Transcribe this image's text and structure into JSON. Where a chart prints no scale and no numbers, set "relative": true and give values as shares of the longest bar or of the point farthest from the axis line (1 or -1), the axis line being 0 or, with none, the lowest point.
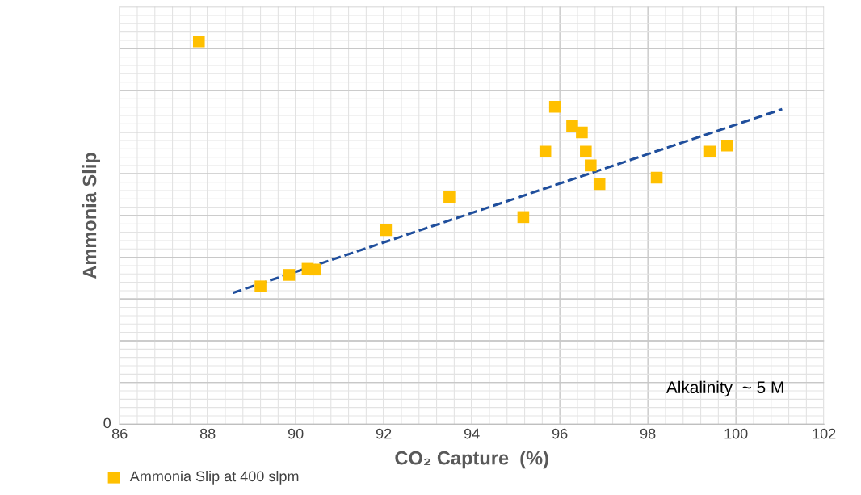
{
  "chart_data": {
    "type": "scatter",
    "xlabel": "CO₂ Capture  (%)",
    "ylabel": "Ammonia Slip",
    "relative": true,
    "xlim": [
      86,
      102
    ],
    "xticks": [
      86,
      88,
      90,
      92,
      94,
      96,
      98,
      100,
      102
    ],
    "series": [
      {
        "name": "Ammonia Slip at 400 slpm",
        "color": "#ffc000",
        "x": [
          87.8,
          89.2,
          89.85,
          90.27,
          90.44,
          92.05,
          93.49,
          95.17,
          95.67,
          95.89,
          96.28,
          96.5,
          96.59,
          96.7,
          96.9,
          98.2,
          99.41,
          99.8
        ],
        "values": [
          1,
          0.36,
          0.39,
          0.406,
          0.404,
          0.507,
          0.594,
          0.541,
          0.712,
          0.829,
          0.779,
          0.762,
          0.712,
          0.676,
          0.627,
          0.644,
          0.712,
          0.728
        ],
        "marker": "square"
      },
      {
        "type": "line",
        "color": "#1f4e9c",
        "x": [
          88.57,
          101.05
        ],
        "values": [
          0.343,
          0.823
        ],
        "line_style": "dashed",
        "marker": "none"
      }
    ],
    "grid": true,
    "legend": "bottom left",
    "annotations": [
      "Alkalinity  ~ 5 M",
      "0"
    ]
  }
}
